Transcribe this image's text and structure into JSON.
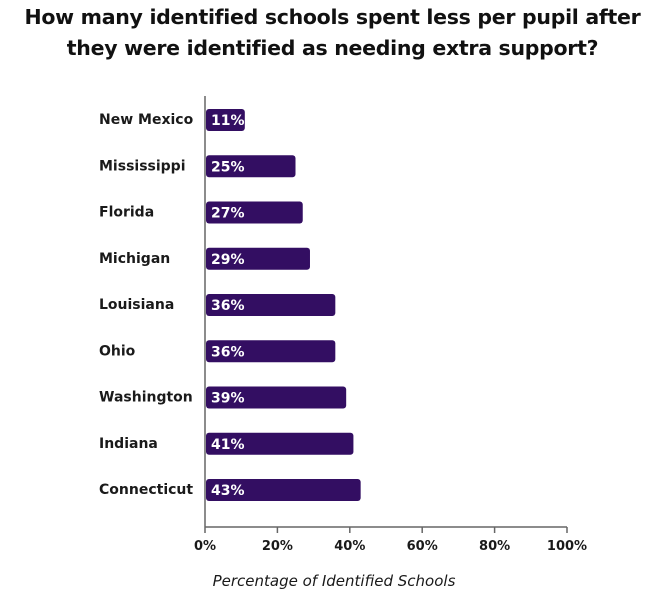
{
  "colors": {
    "bar": "#330e62",
    "axis": "#666666",
    "text": "#111111"
  },
  "chart_data": {
    "type": "bar",
    "orientation": "horizontal",
    "title": "How many identified schools spent less per pupil after they were identified as needing extra support?",
    "xlabel": "Percentage of Identified Schools",
    "ylabel": "",
    "categories": [
      "New Mexico",
      "Mississippi",
      "Florida",
      "Michigan",
      "Louisiana",
      "Ohio",
      "Washington",
      "Indiana",
      "Connecticut"
    ],
    "values": [
      11,
      25,
      27,
      29,
      36,
      36,
      39,
      41,
      43
    ],
    "value_labels": [
      "11%",
      "25%",
      "27%",
      "29%",
      "36%",
      "36%",
      "39%",
      "41%",
      "43%"
    ],
    "xlim": [
      0,
      100
    ],
    "xticks": [
      0,
      20,
      40,
      60,
      80,
      100
    ],
    "xtick_labels": [
      "0%",
      "20%",
      "40%",
      "60%",
      "80%",
      "100%"
    ],
    "grid": false,
    "legend": "none"
  }
}
